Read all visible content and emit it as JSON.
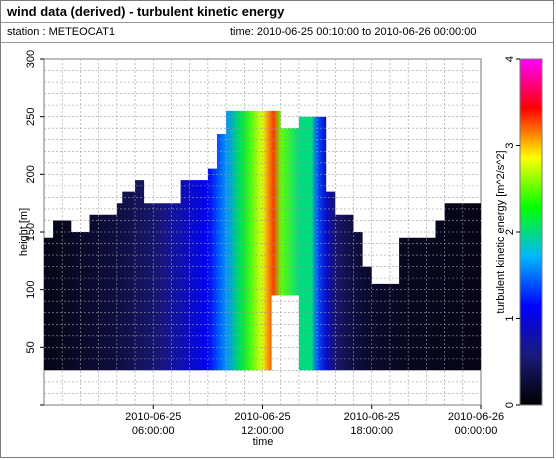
{
  "title": "wind data (derived) - turbulent kinetic energy",
  "station_label": "station : METEOCAT1",
  "time_label": "time: 2010-06-25 00:10:00 to 2010-06-26 00:00:00",
  "colors": {
    "frame": "#7a7a7a",
    "grid": "#9a9a9a",
    "background": "#ffffff",
    "zero_low": "#0a0a20",
    "colormap": [
      "#000000",
      "#1a1a7a",
      "#0000ff",
      "#00b7ff",
      "#00ff00",
      "#ffff00",
      "#ff0000",
      "#ff00ff"
    ]
  },
  "chart_data": {
    "type": "heatmap",
    "xlabel": "time",
    "ylabel": "height [m]",
    "x_ticks": [
      {
        "line1": "2010-06-25",
        "line2": "06:00:00",
        "hours": 6
      },
      {
        "line1": "2010-06-25",
        "line2": "12:00:00",
        "hours": 12
      },
      {
        "line1": "2010-06-25",
        "line2": "18:00:00",
        "hours": 18
      },
      {
        "line1": "2010-06-26",
        "line2": "00:00:00",
        "hours": 24
      }
    ],
    "xlim_hours": [
      0,
      24
    ],
    "y_ticks": [
      50,
      100,
      150,
      200,
      250,
      300
    ],
    "ylim": [
      0,
      300
    ],
    "colorbar": {
      "label": "turbulent kinetic energy [m^2/s^2]",
      "range": [
        0,
        4
      ],
      "ticks": [
        0,
        1,
        2,
        3,
        4
      ]
    },
    "profile": {
      "top_height": [
        [
          0.0,
          145
        ],
        [
          0.5,
          160
        ],
        [
          1.5,
          150
        ],
        [
          2.5,
          165
        ],
        [
          4.0,
          175
        ],
        [
          4.3,
          185
        ],
        [
          5.0,
          195
        ],
        [
          5.5,
          175
        ],
        [
          7.5,
          195
        ],
        [
          8.5,
          195
        ],
        [
          9.0,
          205
        ],
        [
          9.5,
          235
        ],
        [
          10.0,
          255
        ],
        [
          12.0,
          255
        ],
        [
          13.0,
          240
        ],
        [
          14.0,
          250
        ],
        [
          15.0,
          250
        ],
        [
          15.5,
          185
        ],
        [
          16.0,
          165
        ],
        [
          17.0,
          150
        ],
        [
          17.5,
          120
        ],
        [
          18.0,
          105
        ],
        [
          19.5,
          145
        ],
        [
          21.5,
          160
        ],
        [
          22.0,
          175
        ],
        [
          24.0,
          175
        ]
      ],
      "gap_start_hours": 12.5,
      "gap_end_hours": 14.0,
      "gap_height": 95,
      "tke_by_hour": [
        [
          0.0,
          0.1
        ],
        [
          4.0,
          0.3
        ],
        [
          6.0,
          0.5
        ],
        [
          7.0,
          0.7
        ],
        [
          8.0,
          0.9
        ],
        [
          9.0,
          1.1
        ],
        [
          10.0,
          1.6
        ],
        [
          11.0,
          2.2
        ],
        [
          12.0,
          2.8
        ],
        [
          12.6,
          3.3
        ],
        [
          13.0,
          2.5
        ],
        [
          14.0,
          2.0
        ],
        [
          14.7,
          2.0
        ],
        [
          15.0,
          1.4
        ],
        [
          15.5,
          0.9
        ],
        [
          16.0,
          0.5
        ],
        [
          17.0,
          0.3
        ],
        [
          18.0,
          0.2
        ],
        [
          20.0,
          0.15
        ],
        [
          24.0,
          0.1
        ]
      ]
    }
  }
}
